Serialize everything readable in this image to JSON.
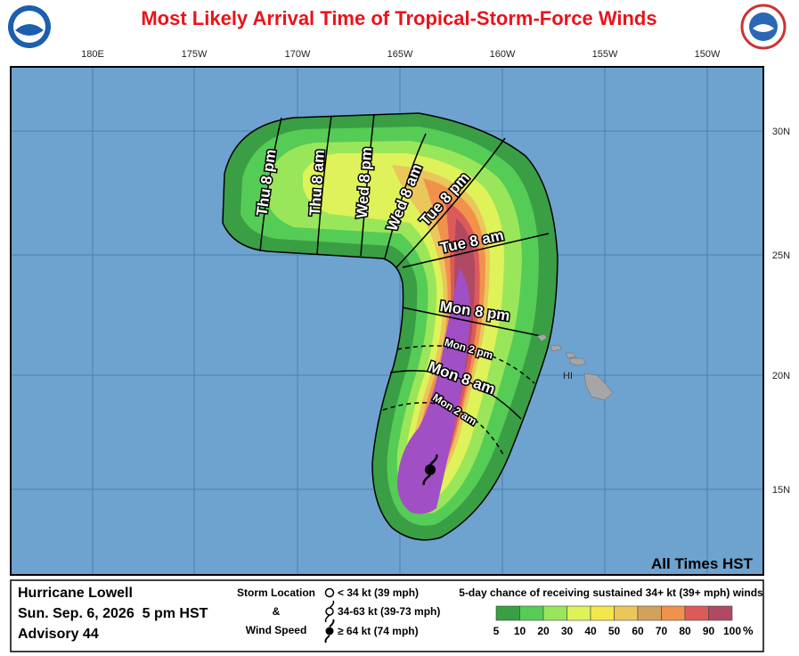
{
  "header": {
    "title": "Most Likely Arrival Time of Tropical-Storm-Force Winds"
  },
  "map": {
    "longitude_labels": [
      "180E",
      "175W",
      "170W",
      "165W",
      "160W",
      "155W",
      "150W"
    ],
    "latitude_labels": [
      "30N",
      "25N",
      "20N",
      "15N"
    ],
    "island_label": "HI",
    "arrival_times": [
      "Thu 8 pm",
      "Thu 8 am",
      "Wed 8 pm",
      "Wed 8 am",
      "Tue 8 pm",
      "Tue 8 am",
      "Mon 8 pm",
      "Mon 2 pm",
      "Mon 8 am",
      "Mon 2 am"
    ],
    "note": "All Times HST"
  },
  "footer": {
    "storm": {
      "name": "Hurricane Lowell",
      "date": "Sun. Sep. 6, 2026  5 pm HST",
      "advisory": "Advisory 44"
    },
    "key": {
      "title_lines": [
        "Storm Location",
        "&",
        "Wind Speed"
      ],
      "items": [
        "< 34 kt (39 mph)",
        "34-63 kt (39-73 mph)",
        "≥ 64 kt (74 mph)"
      ]
    },
    "probability": {
      "title": "5-day chance of receiving sustained 34+ kt (39+ mph) winds",
      "ticks": [
        5,
        10,
        20,
        30,
        40,
        50,
        60,
        70,
        80,
        90,
        100
      ],
      "unit": "%",
      "colors": [
        "#3a9e44",
        "#55cc55",
        "#9ae65a",
        "#dff25a",
        "#f3e74c",
        "#ebc65b",
        "#d2a25d",
        "#f0924c",
        "#dd5a5a",
        "#b04a63",
        "#a14fc4"
      ]
    }
  }
}
